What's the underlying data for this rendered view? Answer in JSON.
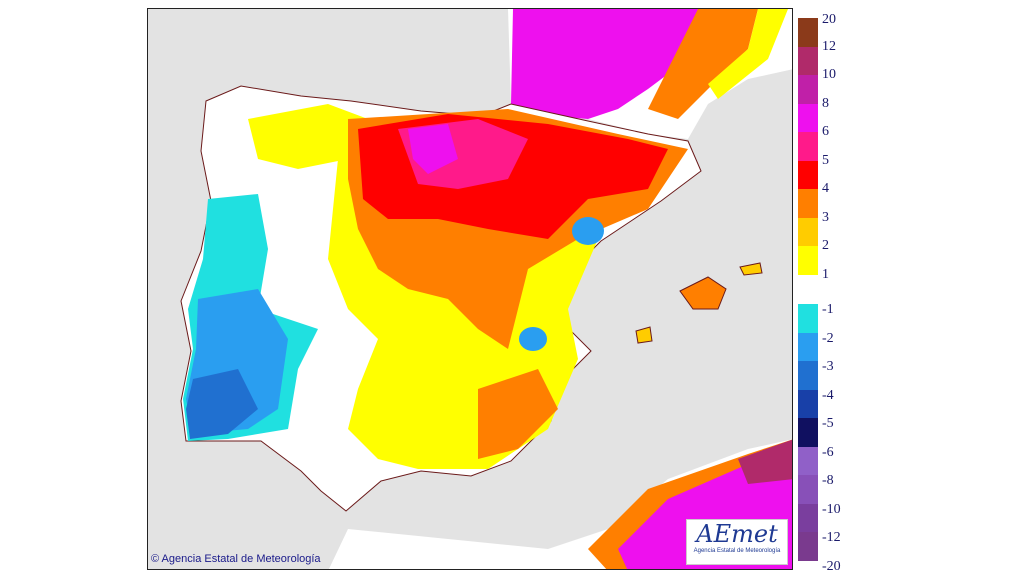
{
  "map": {
    "copyright": "© Agencia Estatal de Meteorología",
    "logo_text": "AEmet",
    "logo_subtext": "Agencia Estatal de Meteorología",
    "sea_color": "#e3e3e3",
    "land_color": "#ffffff"
  },
  "legend": {
    "positive": [
      {
        "label": "20",
        "color": "#8b3a1a"
      },
      {
        "label": "12",
        "color": "#b02a6a"
      },
      {
        "label": "10",
        "color": "#c020a8"
      },
      {
        "label": "8",
        "color": "#ee10ee"
      },
      {
        "label": "6",
        "color": "#ff1a8a"
      },
      {
        "label": "5",
        "color": "#ff0000"
      },
      {
        "label": "4",
        "color": "#ff7f00"
      },
      {
        "label": "3",
        "color": "#ffcc00"
      },
      {
        "label": "2",
        "color": "#ffff00"
      },
      {
        "label": "1",
        "color": ""
      }
    ],
    "negative": [
      {
        "label": "-1",
        "color": "#20e0e0"
      },
      {
        "label": "-2",
        "color": "#2a9ef0"
      },
      {
        "label": "-3",
        "color": "#2070d0"
      },
      {
        "label": "-4",
        "color": "#1840a8"
      },
      {
        "label": "-5",
        "color": "#101060"
      },
      {
        "label": "-6",
        "color": "#9060c8"
      },
      {
        "label": "-8",
        "color": "#8850b8"
      },
      {
        "label": "-10",
        "color": "#7a3e9e"
      },
      {
        "label": "-12",
        "color": "#7a3a8e"
      },
      {
        "label": "-20",
        "color": ""
      }
    ]
  }
}
